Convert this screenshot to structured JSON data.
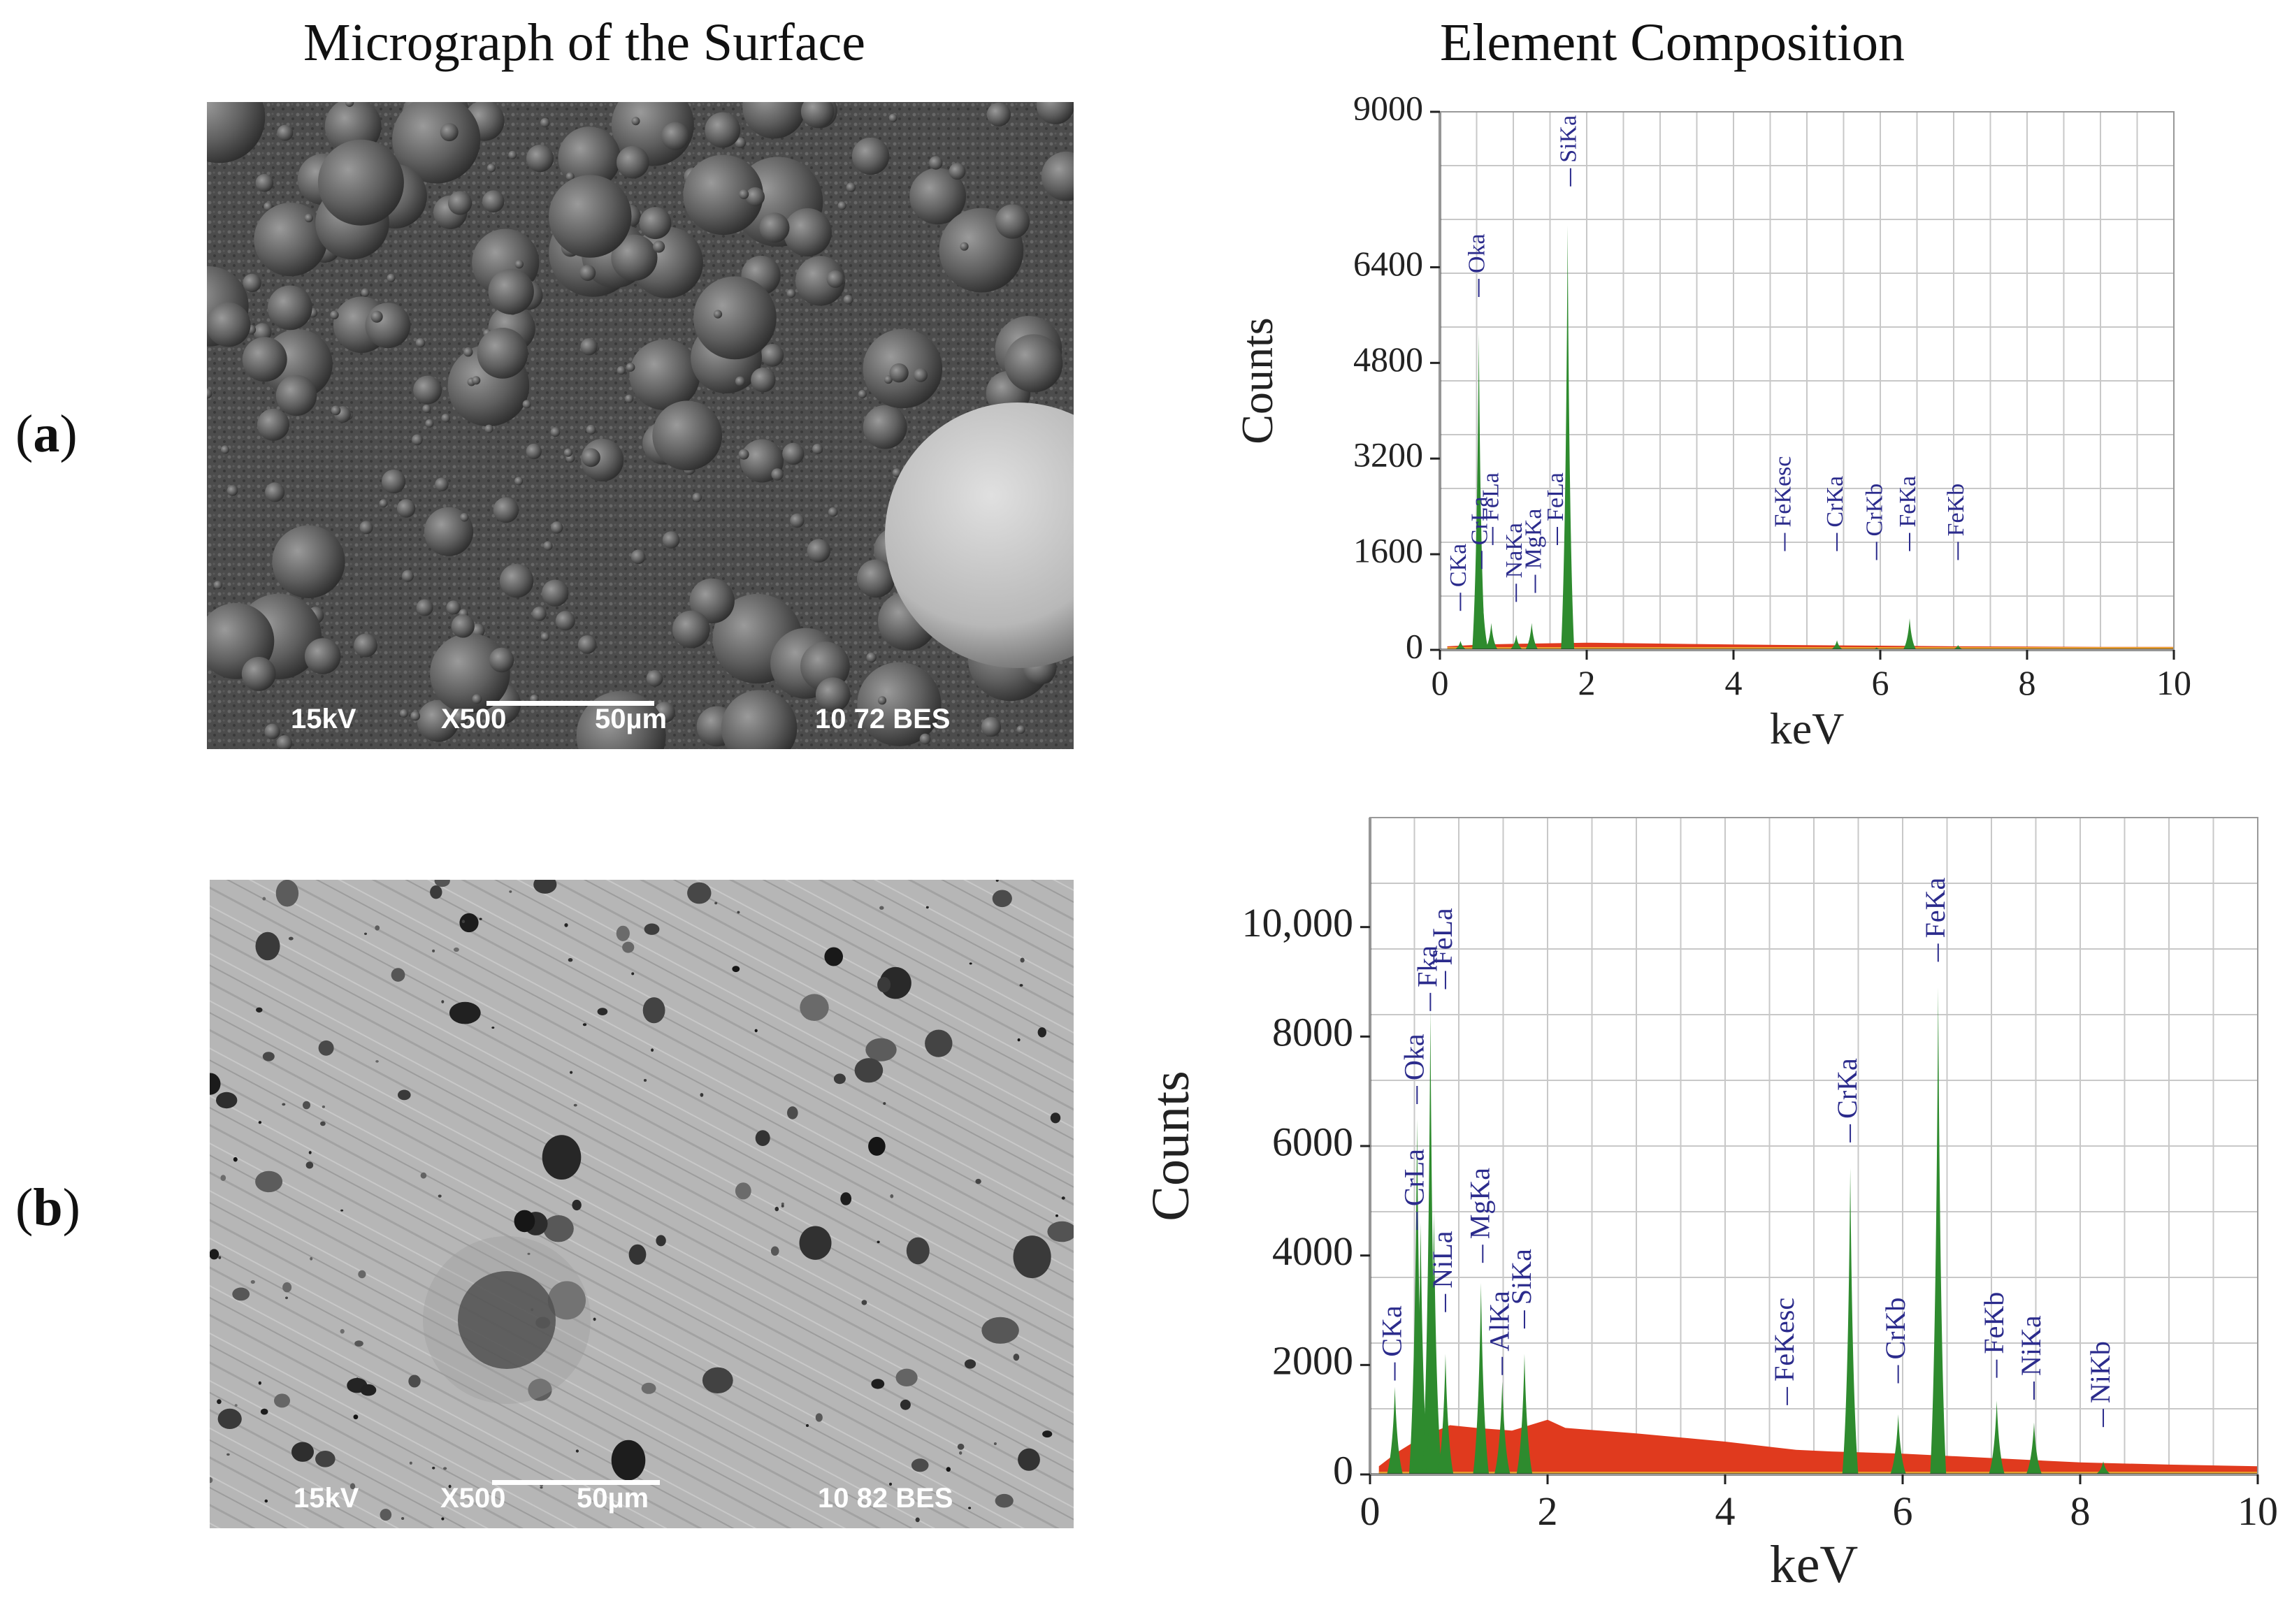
{
  "titles": {
    "left": "Micrograph of the Surface",
    "right": "Element Composition"
  },
  "rows": [
    {
      "label_open": "(",
      "label_letter": "a",
      "label_close": ")"
    },
    {
      "label_open": "(",
      "label_letter": "b",
      "label_close": ")"
    }
  ],
  "micrographs": [
    {
      "voltage": "15kV",
      "magnification": "X500",
      "scale": "50µm",
      "info": "10 72 BES"
    },
    {
      "voltage": "15kV",
      "magnification": "X500",
      "scale": "50µm",
      "info": "10 82 BES"
    }
  ],
  "colors": {
    "peak_green": "#2e8b2e",
    "background_red": "#e03a1e",
    "label_blue": "#2b2b8c",
    "grid": "#c8c8c8",
    "baseline_orange": "#e8a030"
  },
  "chart_data": [
    {
      "type": "area",
      "xlabel": "keV",
      "ylabel": "Counts",
      "xlim": [
        0,
        10
      ],
      "ylim": [
        0,
        9000
      ],
      "xticks": [
        "0",
        "2",
        "4",
        "6",
        "8",
        "10"
      ],
      "yticks": [
        "0",
        "1600",
        "3200",
        "4800",
        "6400",
        "9000"
      ],
      "ytick_values": [
        0,
        1600,
        3200,
        4800,
        6400,
        9000
      ],
      "grid": true,
      "peaks": [
        {
          "name": "CKa",
          "x": 0.28,
          "y": 150
        },
        {
          "name": "CrLa",
          "x": 0.57,
          "y": 1300
        },
        {
          "name": "Oka",
          "x": 0.53,
          "y": 5300
        },
        {
          "name": "FeLa",
          "x": 0.7,
          "y": 450
        },
        {
          "name": "NaKa",
          "x": 1.04,
          "y": 250
        },
        {
          "name": "MgKa",
          "x": 1.25,
          "y": 450
        },
        {
          "name": "SiKa",
          "x": 1.74,
          "y": 7100
        },
        {
          "name": "FeKesc",
          "x": 4.7,
          "y": 0
        },
        {
          "name": "CrKa",
          "x": 5.41,
          "y": 160
        },
        {
          "name": "CrKb",
          "x": 5.95,
          "y": 40
        },
        {
          "name": "FeKa",
          "x": 6.4,
          "y": 530
        },
        {
          "name": "FeKb",
          "x": 7.06,
          "y": 80
        }
      ],
      "peak_labels": [
        {
          "text": "CKa",
          "x": 0.28,
          "y": 1050
        },
        {
          "text": "CrLa",
          "x": 0.57,
          "y": 1750
        },
        {
          "text": "FeLa",
          "x": 0.72,
          "y": 2150
        },
        {
          "text": "NaKa",
          "x": 1.04,
          "y": 1200
        },
        {
          "text": "MgKa",
          "x": 1.3,
          "y": 1350
        },
        {
          "text": "FeLa",
          "x": 1.6,
          "y": 2150
        },
        {
          "text": "Oka",
          "x": 0.53,
          "y": 6300
        },
        {
          "text": "SiKa",
          "x": 1.78,
          "y": 8150
        },
        {
          "text": "FeKesc",
          "x": 4.7,
          "y": 2050
        },
        {
          "text": "CrKa",
          "x": 5.41,
          "y": 2050
        },
        {
          "text": "CrKb",
          "x": 5.95,
          "y": 1900
        },
        {
          "text": "FeKa",
          "x": 6.4,
          "y": 2050
        },
        {
          "text": "FeKb",
          "x": 7.06,
          "y": 1900
        }
      ],
      "background": [
        [
          0.1,
          60
        ],
        [
          0.6,
          90
        ],
        [
          1.0,
          100
        ],
        [
          2.0,
          120
        ],
        [
          3.0,
          105
        ],
        [
          4.0,
          90
        ],
        [
          5.0,
          80
        ],
        [
          6.0,
          70
        ],
        [
          7.0,
          60
        ],
        [
          8.0,
          55
        ],
        [
          9.0,
          50
        ],
        [
          10.0,
          50
        ]
      ]
    },
    {
      "type": "area",
      "xlabel": "keV",
      "ylabel": "Counts",
      "xlim": [
        0,
        10
      ],
      "ylim": [
        0,
        12000
      ],
      "xticks": [
        "0",
        "2",
        "4",
        "6",
        "8",
        "10"
      ],
      "yticks": [
        "0",
        "2000",
        "4000",
        "6000",
        "8000",
        "10,000"
      ],
      "ytick_values": [
        0,
        2000,
        4000,
        6000,
        8000,
        10000
      ],
      "grid": true,
      "peaks": [
        {
          "name": "CKa",
          "x": 0.28,
          "y": 1600
        },
        {
          "name": "Oka",
          "x": 0.53,
          "y": 6500
        },
        {
          "name": "CrLa",
          "x": 0.57,
          "y": 4600
        },
        {
          "name": "Fka",
          "x": 0.68,
          "y": 8500
        },
        {
          "name": "FeLa",
          "x": 0.72,
          "y": 4800
        },
        {
          "name": "NiLa",
          "x": 0.85,
          "y": 2200
        },
        {
          "name": "MgKa",
          "x": 1.25,
          "y": 3500
        },
        {
          "name": "AlKa",
          "x": 1.49,
          "y": 1700
        },
        {
          "name": "SiKa",
          "x": 1.74,
          "y": 2200
        },
        {
          "name": "FeKesc",
          "x": 4.7,
          "y": 0
        },
        {
          "name": "CrKa",
          "x": 5.41,
          "y": 5600
        },
        {
          "name": "CrKb",
          "x": 5.95,
          "y": 1100
        },
        {
          "name": "FeKa",
          "x": 6.4,
          "y": 8900
        },
        {
          "name": "FeKb",
          "x": 7.06,
          "y": 1350
        },
        {
          "name": "NiKa",
          "x": 7.48,
          "y": 950
        },
        {
          "name": "NiKb",
          "x": 8.26,
          "y": 240
        }
      ],
      "peak_labels": [
        {
          "text": "CKa",
          "x": 0.28,
          "y": 2150
        },
        {
          "text": "Oka",
          "x": 0.53,
          "y": 7200
        },
        {
          "text": "CrLa",
          "x": 0.53,
          "y": 4900
        },
        {
          "text": "Fka",
          "x": 0.68,
          "y": 8900
        },
        {
          "text": "FeLa",
          "x": 0.85,
          "y": 9300
        },
        {
          "text": "NiLa",
          "x": 0.85,
          "y": 3400
        },
        {
          "text": "MgKa",
          "x": 1.27,
          "y": 4300
        },
        {
          "text": "AlKa",
          "x": 1.49,
          "y": 2250
        },
        {
          "text": "SiKa",
          "x": 1.74,
          "y": 3100
        },
        {
          "text": "FeKesc",
          "x": 4.7,
          "y": 1700
        },
        {
          "text": "CrKa",
          "x": 5.41,
          "y": 6500
        },
        {
          "text": "CrKb",
          "x": 5.95,
          "y": 2100
        },
        {
          "text": "FeKa",
          "x": 6.4,
          "y": 9800
        },
        {
          "text": "FeKb",
          "x": 7.06,
          "y": 2200
        },
        {
          "text": "NiKa",
          "x": 7.48,
          "y": 1800
        },
        {
          "text": "NiKb",
          "x": 8.26,
          "y": 1300
        }
      ],
      "background": [
        [
          0.1,
          150
        ],
        [
          0.3,
          400
        ],
        [
          0.6,
          700
        ],
        [
          0.9,
          900
        ],
        [
          1.2,
          850
        ],
        [
          1.6,
          800
        ],
        [
          2.0,
          1000
        ],
        [
          2.2,
          850
        ],
        [
          3.0,
          750
        ],
        [
          4.0,
          600
        ],
        [
          4.8,
          450
        ],
        [
          5.2,
          420
        ],
        [
          6.0,
          380
        ],
        [
          7.0,
          300
        ],
        [
          8.0,
          220
        ],
        [
          9.0,
          180
        ],
        [
          10.0,
          150
        ]
      ]
    }
  ]
}
